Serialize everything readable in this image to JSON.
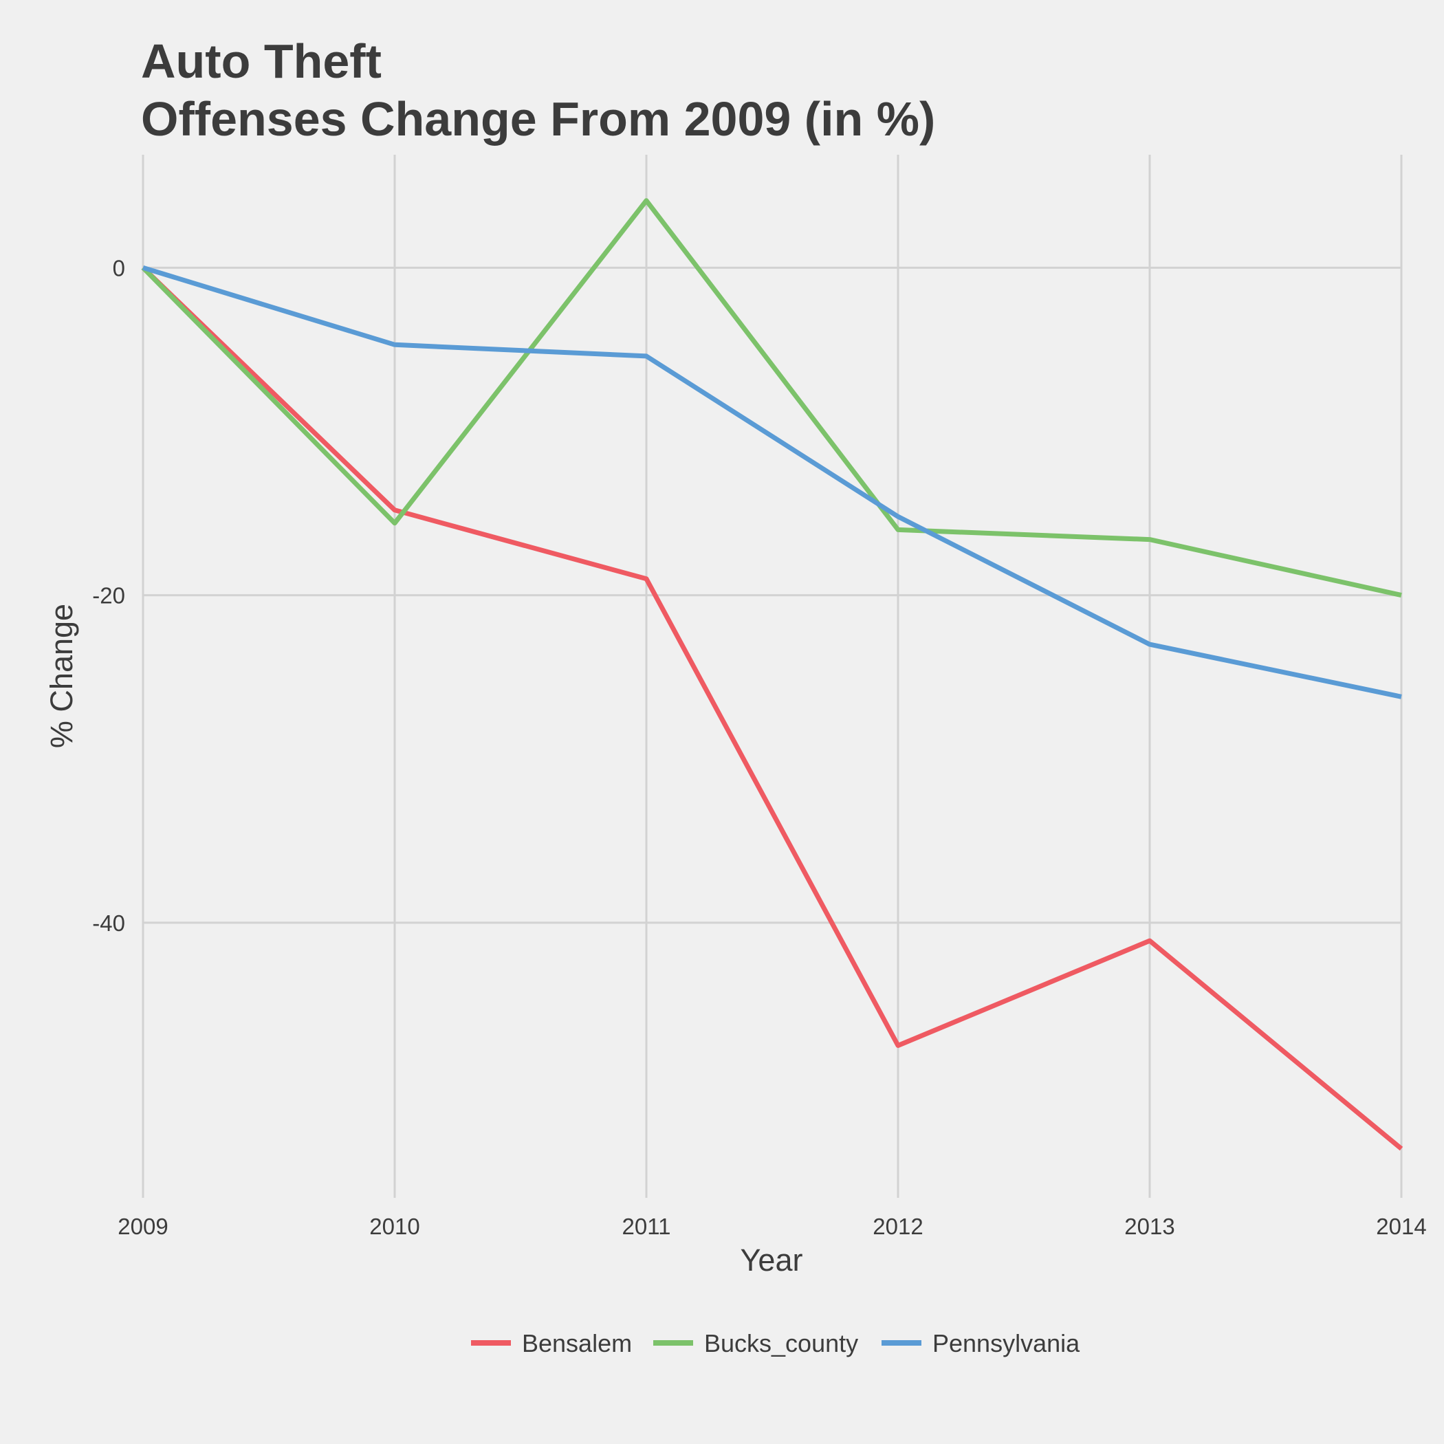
{
  "chart_data": {
    "type": "line",
    "title_lines": [
      "Auto Theft",
      "Offenses Change From 2009 (in %)"
    ],
    "xlabel": "Year",
    "ylabel": "% Change",
    "x": [
      2009,
      2010,
      2011,
      2012,
      2013,
      2014
    ],
    "x_tick_labels": [
      "2009",
      "2010",
      "2011",
      "2012",
      "2013",
      "2014"
    ],
    "y_ticks": [
      0,
      -20,
      -40
    ],
    "y_tick_labels": [
      "0",
      "-20",
      "-40"
    ],
    "xlim": [
      2009,
      2014
    ],
    "ylim": [
      -56.8,
      6.9
    ],
    "grid": true,
    "legend_position": "bottom",
    "series": [
      {
        "name": "Bensalem",
        "color": "#ef5a62",
        "values": [
          0,
          -14.8,
          -19.0,
          -47.5,
          -41.1,
          -53.8
        ]
      },
      {
        "name": "Bucks_county",
        "color": "#7cc26a",
        "values": [
          0,
          -15.6,
          4.1,
          -16.0,
          -16.6,
          -20.0
        ]
      },
      {
        "name": "Pennsylvania",
        "color": "#5a9bd5",
        "values": [
          0,
          -4.7,
          -5.4,
          -15.2,
          -23.0,
          -26.2
        ]
      }
    ]
  }
}
